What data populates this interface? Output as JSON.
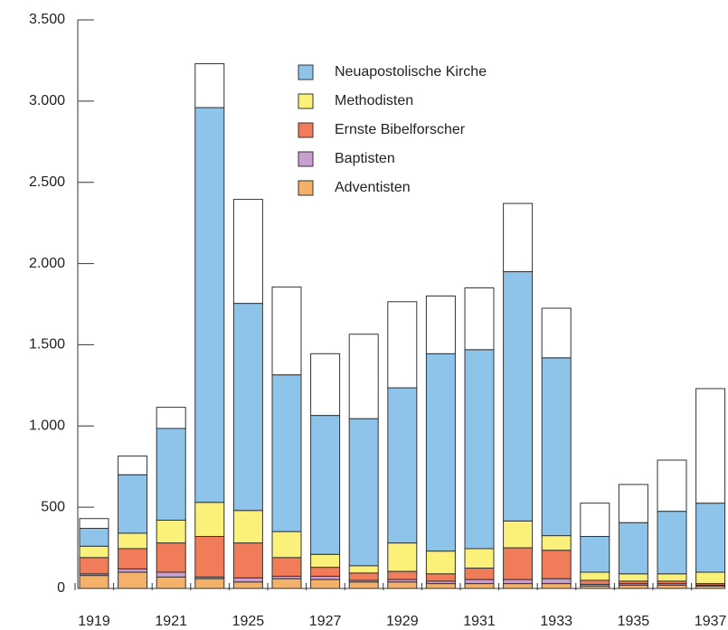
{
  "chart_data": {
    "type": "stacked_bar",
    "categories": [
      "1919",
      null,
      "1921",
      null,
      "1925",
      null,
      "1927",
      null,
      "1929",
      null,
      "1931",
      null,
      "1933",
      null,
      "1935",
      null,
      "1937"
    ],
    "series": [
      {
        "name": "Adventisten",
        "color": "#f5b06a",
        "values": [
          80,
          100,
          70,
          60,
          40,
          60,
          55,
          40,
          40,
          30,
          30,
          30,
          30,
          15,
          20,
          20,
          15
        ]
      },
      {
        "name": "Baptisten",
        "color": "#c8a0d0",
        "values": [
          10,
          20,
          30,
          10,
          25,
          15,
          20,
          10,
          15,
          15,
          25,
          25,
          30,
          10,
          10,
          10,
          5
        ]
      },
      {
        "name": "Ernste Bibelforscher",
        "color": "#f07c5a",
        "values": [
          100,
          125,
          180,
          250,
          215,
          115,
          55,
          45,
          50,
          45,
          70,
          195,
          175,
          25,
          15,
          15,
          10
        ]
      },
      {
        "name": "Methodisten",
        "color": "#fbf07a",
        "values": [
          70,
          95,
          140,
          210,
          200,
          160,
          80,
          45,
          175,
          140,
          120,
          165,
          90,
          50,
          45,
          45,
          70
        ]
      },
      {
        "name": "Neuapostolische Kirche",
        "color": "#8ec4ea",
        "values": [
          110,
          360,
          565,
          2430,
          1275,
          965,
          855,
          905,
          955,
          1215,
          1225,
          1535,
          1095,
          220,
          315,
          385,
          425
        ]
      },
      {
        "color": "#ffffff",
        "values": [
          60,
          115,
          130,
          270,
          640,
          540,
          380,
          520,
          530,
          355,
          380,
          420,
          305,
          205,
          235,
          315,
          705
        ]
      }
    ],
    "ylim": [
      0,
      3500
    ],
    "yticks": [
      0,
      500,
      {
        "value": 1000,
        "label": "1.000"
      },
      {
        "value": 1500,
        "label": "1.500"
      },
      {
        "value": 2000,
        "label": "2.000"
      },
      {
        "value": 2500,
        "label": "2.500"
      },
      {
        "value": 3000,
        "label": "3.000"
      },
      {
        "value": 3500,
        "label": "3.500"
      }
    ],
    "legend": "top-center"
  }
}
